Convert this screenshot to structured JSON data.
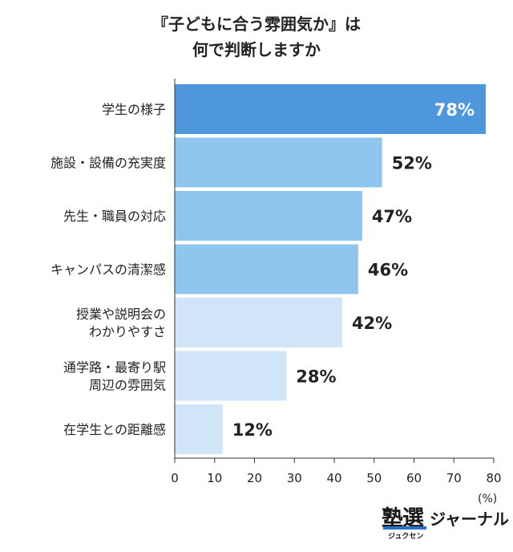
{
  "title_lines": [
    "『子どもに合う雰囲気か』は",
    "何で判断しますか"
  ],
  "unit": "(%)",
  "logo": {
    "kanji": "塾選",
    "sub": "ジュクセン",
    "kana": "ジャーナル"
  },
  "colors": {
    "top": "#4f97dd",
    "mid": "#8fc6ef",
    "low": "#d0e6f8"
  },
  "chart_data": {
    "type": "bar",
    "orientation": "horizontal",
    "title": "『子どもに合う雰囲気か』は何で判断しますか",
    "categories": [
      [
        "学生の様子"
      ],
      [
        "施設・設備の充実度"
      ],
      [
        "先生・職員の対応"
      ],
      [
        "キャンパスの清潔感"
      ],
      [
        "授業や説明会の",
        "わかりやすさ"
      ],
      [
        "通学路・最寄り駅",
        "周辺の雰囲気"
      ],
      [
        "在学生との距離感"
      ]
    ],
    "values": [
      78,
      52,
      47,
      46,
      42,
      28,
      12
    ],
    "value_labels": [
      "78%",
      "52%",
      "47%",
      "46%",
      "42%",
      "28%",
      "12%"
    ],
    "tier": [
      "top",
      "mid",
      "mid",
      "mid",
      "low",
      "low",
      "low"
    ],
    "xlim": [
      0,
      80
    ],
    "xticks": [
      0,
      10,
      20,
      30,
      40,
      50,
      60,
      70,
      80
    ],
    "xlabel": "",
    "ylabel": "",
    "grid": false,
    "legend": "none"
  }
}
